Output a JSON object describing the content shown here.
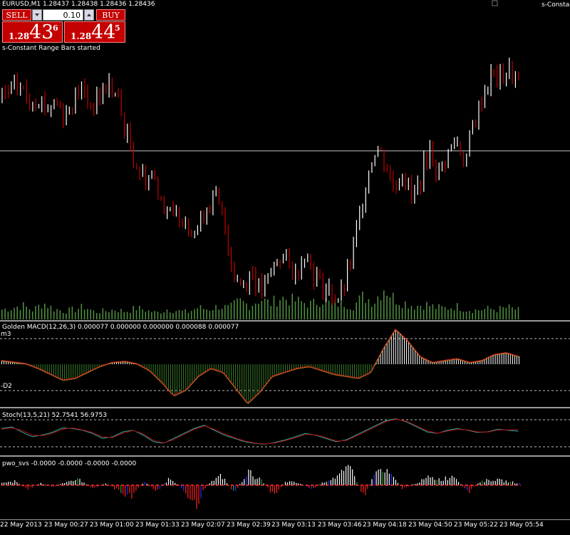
{
  "symbol_header": "EURUSD,M1  1.28437 1.28438 1.28436 1.28436",
  "top_right_label": "s-Constan",
  "trade_panel": {
    "sell_label": "SELL",
    "buy_label": "BUY",
    "lot_value": "0.10",
    "sell_price_small": "1.28",
    "sell_price_big": "43",
    "sell_price_sup": "6",
    "buy_price_small": "1.28",
    "buy_price_big": "44",
    "buy_price_sup": "5"
  },
  "status_message": "s-Constant Range Bars started",
  "panes": {
    "macd_title": "Golden MACD(12,26,3) 0.000077 0.000000 0.000000 0.000088 0.000077",
    "macd_upper_level": "m3",
    "macd_lower_level": "-D2",
    "stoch_title": "Stoch(13,5,21) 52.7541 56.9753",
    "pwo_title": "pwo_svs -0.0000 -0.0000 -0.0000 -0.0000"
  },
  "x_axis_labels": [
    "22 May 2013",
    "23 May 00:27",
    "23 May 01:00",
    "23 May 01:33",
    "23 May 02:07",
    "23 May 02:39",
    "23 May 03:13",
    "23 May 03:46",
    "23 May 04:18",
    "23 May 04:50",
    "23 May 05:22",
    "23 May 05:54"
  ],
  "colors": {
    "background": "#000000",
    "bull_candle": "#ffffff",
    "bear_candle": "#c00000",
    "volume": "#4e8c3e",
    "macd_positive": "#ffffff",
    "macd_negative": "#3a7d2a",
    "stoch_main": "#20b2aa",
    "stoch_signal": "#c00000",
    "pwo_positive": "#ffffff",
    "pwo_negative": "#ff2020",
    "pwo_blue": "#2030ff",
    "pwo_green": "#20a020"
  },
  "chart_data": [
    {
      "type": "candlestick",
      "title": "EURUSD,M1",
      "close_trend": [
        0.8,
        0.83,
        0.86,
        0.79,
        0.82,
        0.76,
        0.8,
        0.73,
        0.81,
        0.84,
        0.77,
        0.82,
        0.86,
        0.8,
        0.65,
        0.55,
        0.48,
        0.5,
        0.4,
        0.32,
        0.35,
        0.3,
        0.28,
        0.38,
        0.4,
        0.3,
        0.1,
        0.05,
        0.12,
        0.02,
        0.08,
        0.18,
        0.15,
        0.09,
        0.2,
        0.1,
        0.05,
        0.02,
        0.0,
        0.12,
        0.3,
        0.5,
        0.62,
        0.55,
        0.45,
        0.52,
        0.4,
        0.48,
        0.6,
        0.5,
        0.58,
        0.64,
        0.55,
        0.7,
        0.82,
        0.9,
        0.88,
        0.92,
        0.86
      ],
      "current_price": 1.28436,
      "volume_trend": [
        0.3,
        0.35,
        0.42,
        0.28,
        0.5,
        0.32,
        0.25,
        0.3,
        0.38,
        0.22,
        0.26,
        0.3,
        0.24,
        0.34,
        0.28,
        0.2,
        0.31,
        0.26,
        0.22,
        0.36,
        0.3,
        0.4,
        0.34,
        0.55,
        0.42,
        0.62,
        0.48,
        0.66,
        0.58,
        0.52,
        0.46,
        0.6,
        0.44,
        0.5,
        0.4,
        0.7,
        0.52,
        0.98,
        0.62,
        0.5,
        0.4,
        0.46,
        0.36,
        0.34,
        0.4,
        0.3,
        0.28,
        0.32,
        0.3,
        0.36,
        0.28
      ]
    },
    {
      "type": "bar",
      "title": "Golden MACD(12,26,3)",
      "values": [
        0.1,
        0.06,
        0.02,
        -0.1,
        -0.25,
        -0.4,
        -0.35,
        -0.2,
        -0.05,
        0.05,
        0.08,
        0.02,
        -0.15,
        -0.45,
        -0.8,
        -0.65,
        -0.3,
        -0.1,
        -0.2,
        -0.6,
        -1.0,
        -0.7,
        -0.3,
        -0.2,
        -0.1,
        -0.05,
        -0.15,
        -0.25,
        -0.3,
        -0.35,
        -0.2,
        0.4,
        0.9,
        0.6,
        0.2,
        0.05,
        0.1,
        0.15,
        0.05,
        0.1,
        0.25,
        0.3,
        0.2
      ]
    },
    {
      "type": "line",
      "title": "Stoch(13,5,21)",
      "ylim": [
        0,
        100
      ],
      "series": [
        {
          "name": "main",
          "values": [
            60,
            65,
            50,
            35,
            40,
            48,
            62,
            60,
            55,
            45,
            30,
            35,
            50,
            55,
            40,
            20,
            15,
            30,
            45,
            60,
            70,
            55,
            40,
            30,
            20,
            15,
            12,
            18,
            25,
            35,
            45,
            40,
            30,
            20,
            25,
            40,
            55,
            70,
            85,
            90,
            80,
            65,
            50,
            45,
            55,
            60,
            55,
            48,
            50,
            58,
            55,
            52
          ]
        },
        {
          "name": "signal",
          "values": [
            58,
            62,
            55,
            40,
            38,
            45,
            58,
            62,
            56,
            48,
            34,
            33,
            46,
            54,
            44,
            24,
            16,
            26,
            42,
            57,
            68,
            58,
            44,
            32,
            22,
            16,
            13,
            16,
            23,
            32,
            42,
            41,
            33,
            22,
            23,
            37,
            52,
            67,
            82,
            89,
            82,
            68,
            53,
            46,
            52,
            58,
            56,
            50,
            49,
            56,
            56,
            57
          ]
        }
      ]
    },
    {
      "type": "bar",
      "title": "pwo_svs",
      "values": [
        0.1,
        0.2,
        -0.2,
        0.1,
        -0.1,
        0.2,
        0.3,
        -0.2,
        0.1,
        -0.3,
        -0.6,
        0.2,
        -0.3,
        0.4,
        -0.2,
        -1.0,
        0.1,
        0.5,
        -0.4,
        0.7,
        0.3,
        -0.5,
        0.2,
        0.1,
        -0.2,
        0.2,
        0.5,
        0.9,
        -0.6,
        0.8,
        0.6,
        -0.2,
        0.1,
        0.4,
        0.3,
        0.5,
        -0.4,
        0.2,
        0.3,
        0.2,
        0.1
      ]
    }
  ]
}
